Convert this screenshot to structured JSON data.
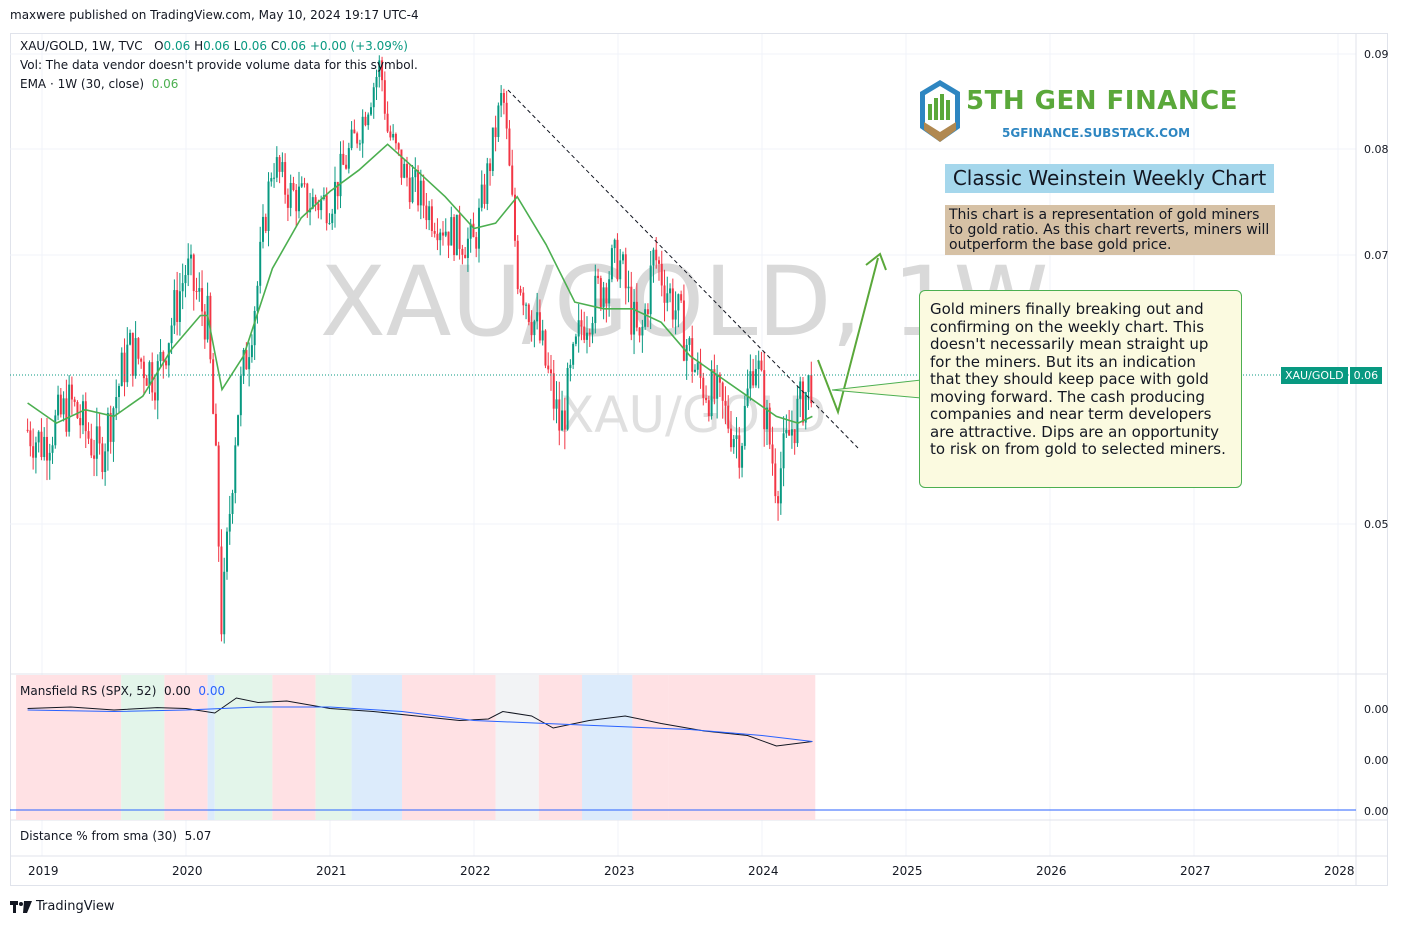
{
  "header": {
    "publisher": "maxwere published on TradingView.com, May 10, 2024 19:17 UTC-4"
  },
  "legend": {
    "symbol": "XAU/GOLD, 1W, TVC",
    "o_label": "O",
    "o_val": "0.06",
    "h_label": "H",
    "h_val": "0.06",
    "l_label": "L",
    "l_val": "0.06",
    "c_label": "C",
    "c_val": "0.06",
    "change": "+0.00 (+3.09%)",
    "vol": "Vol: The data vendor doesn't provide volume data for this symbol.",
    "ema_label": "EMA · 1W (30, close)",
    "ema_val": "0.06"
  },
  "watermark": {
    "main": "XAU/GOLD, 1W",
    "sub": "XAU/GOLD"
  },
  "price_badge": {
    "symbol": "XAU/GOLD",
    "value": "0.06"
  },
  "indicators": {
    "mansfield_label": "Mansfield RS (SPX, 52)",
    "mansfield_val1": "0.00",
    "mansfield_val2": "0.00",
    "distance_label": "Distance % from sma (30)",
    "distance_val": "5.07"
  },
  "branding": {
    "title": "5TH GEN FINANCE",
    "url": "5GFINANCE.SUBSTACK.COM",
    "tradingview": "TradingView"
  },
  "annotations": {
    "chart_title": "Classic Weinstein Weekly Chart",
    "description": "This chart is a representation of gold miners to gold ratio.  As this chart reverts, miners will outperform the base gold price.",
    "callout": "Gold miners finally breaking out and confirming on the weekly chart.  This doesn't necessarily mean straight up for the miners.  But its an indication that they should keep pace with gold moving forward.  The cash producing companies and near term developers are attractive.  Dips are an opportunity to risk on from gold to selected miners."
  },
  "colors": {
    "up": "#089981",
    "down": "#f23645",
    "ema": "#4caf50",
    "rs_line": "#131722",
    "rs_ma": "#2962ff",
    "bg_red": "#ffe1e4",
    "bg_green": "#e3f5ea",
    "bg_blue": "#dcebfb",
    "bg_gray": "#f2f3f5",
    "trend_arrow": "#5aa83a"
  },
  "chart_data": [
    {
      "type": "candlestick",
      "title": "XAU/GOLD, 1W, TVC",
      "y_ticks": [
        "0.09",
        "0.08",
        "0.07",
        "0.05"
      ],
      "x_ticks": [
        "2019",
        "2020",
        "2021",
        "2022",
        "2023",
        "2024",
        "2025",
        "2026",
        "2027",
        "2028"
      ],
      "ylim": [
        0.04,
        0.091
      ],
      "last_price": 0.06,
      "series": [
        {
          "name": "XAU/GOLD",
          "x": [
            2018.9,
            2019.0,
            2019.2,
            2019.4,
            2019.6,
            2019.8,
            2020.0,
            2020.15,
            2020.2,
            2020.25,
            2020.35,
            2020.5,
            2020.6,
            2020.7,
            2020.85,
            2021.0,
            2021.2,
            2021.35,
            2021.4,
            2021.5,
            2021.7,
            2021.85,
            2022.0,
            2022.1,
            2022.2,
            2022.25,
            2022.3,
            2022.45,
            2022.6,
            2022.75,
            2022.9,
            2023.0,
            2023.15,
            2023.25,
            2023.4,
            2023.55,
            2023.7,
            2023.85,
            2023.95,
            2024.1,
            2024.2,
            2024.35
          ],
          "values": [
            0.057,
            0.056,
            0.059,
            0.055,
            0.063,
            0.061,
            0.069,
            0.065,
            0.056,
            0.043,
            0.058,
            0.068,
            0.079,
            0.076,
            0.075,
            0.075,
            0.082,
            0.089,
            0.082,
            0.078,
            0.074,
            0.072,
            0.071,
            0.078,
            0.086,
            0.077,
            0.069,
            0.064,
            0.057,
            0.065,
            0.068,
            0.07,
            0.063,
            0.07,
            0.066,
            0.061,
            0.059,
            0.056,
            0.063,
            0.053,
            0.057,
            0.061
          ]
        },
        {
          "name": "EMA · 1W (30, close)",
          "x": [
            2018.9,
            2019.1,
            2019.3,
            2019.5,
            2019.7,
            2019.9,
            2020.1,
            2020.15,
            2020.25,
            2020.4,
            2020.6,
            2020.8,
            2021.0,
            2021.2,
            2021.4,
            2021.6,
            2021.8,
            2022.0,
            2022.15,
            2022.3,
            2022.5,
            2022.7,
            2022.9,
            2023.1,
            2023.3,
            2023.5,
            2023.7,
            2023.9,
            2024.1,
            2024.25,
            2024.35
          ],
          "values": [
            0.059,
            0.0575,
            0.0585,
            0.058,
            0.0595,
            0.063,
            0.0655,
            0.0655,
            0.06,
            0.0625,
            0.069,
            0.0735,
            0.076,
            0.078,
            0.0805,
            0.078,
            0.0755,
            0.0725,
            0.073,
            0.0755,
            0.071,
            0.0665,
            0.066,
            0.066,
            0.065,
            0.0625,
            0.061,
            0.0595,
            0.058,
            0.0575,
            0.058
          ]
        }
      ],
      "annotations": [
        "Classic Weinstein Weekly Chart",
        "descending trendline",
        "breakout arrow"
      ]
    },
    {
      "type": "line",
      "title": "Mansfield RS (SPX, 52)",
      "y_ticks": [
        "0.00",
        "0.00",
        "0.00"
      ],
      "series": [
        {
          "name": "Mansfield RS",
          "x": [
            2018.9,
            2019.5,
            2020.0,
            2020.5,
            2020.8,
            2021.2,
            2021.6,
            2022.0,
            2022.2,
            2022.5,
            2022.8,
            2023.0,
            2023.3,
            2023.7,
            2024.0,
            2024.35
          ]
        },
        {
          "name": "RS MA",
          "x": [
            2018.9,
            2019.5,
            2020.0,
            2020.5,
            2021.0,
            2021.5,
            2022.0,
            2022.5,
            2023.0,
            2023.5,
            2024.0,
            2024.35
          ]
        }
      ]
    },
    {
      "type": "line",
      "title": "Distance % from sma (30)",
      "value": 5.07
    }
  ]
}
